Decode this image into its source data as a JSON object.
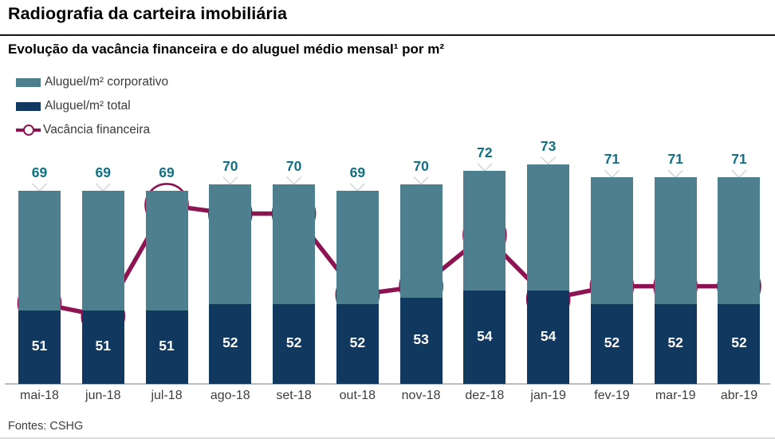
{
  "page": {
    "title": "Radiografia da carteira imobiliária",
    "subtitle": "Evolução da vacância financeira e do aluguel médio mensal¹ por m²",
    "footer": "Fontes: CSHG"
  },
  "legend": [
    {
      "label": "Aluguel/m² corporativo"
    },
    {
      "label": "Aluguel/m² total"
    },
    {
      "label": "Vacância financeira"
    }
  ],
  "colors": {
    "bar_corporativo": "#4e7f8e",
    "bar_total": "#11395f",
    "vacancy_line": "#8d1452",
    "vacancy_text": "#851247",
    "bar_top_label": "#0f7183",
    "bar_in_label": "#ffffff",
    "x_marker": "#ccd6da",
    "axis_line": "#bcbcbc",
    "axis_text": "#3d3d3d"
  },
  "chart_data": {
    "type": "bar",
    "subtype": "overlapped bars with secondary-axis line",
    "title": "Evolução da vacância financeira e do aluguel médio mensal por m²",
    "categories": [
      "mai-18",
      "jun-18",
      "jul-18",
      "ago-18",
      "set-18",
      "out-18",
      "nov-18",
      "dez-18",
      "jan-19",
      "fev-19",
      "mar-19",
      "abr-19"
    ],
    "series": [
      {
        "name": "Aluguel/m² corporativo",
        "type": "bar",
        "values": [
          69,
          69,
          69,
          70,
          70,
          69,
          70,
          72,
          73,
          71,
          71,
          71
        ]
      },
      {
        "name": "Aluguel/m² total",
        "type": "bar",
        "values": [
          51,
          51,
          51,
          52,
          52,
          52,
          53,
          54,
          54,
          52,
          52,
          52
        ]
      },
      {
        "name": "Vacância financeira",
        "type": "line",
        "unit": "%",
        "values": [
          17.4,
          17.1,
          19.7,
          19.5,
          19.5,
          17.6,
          17.8,
          19.0,
          17.5,
          17.8,
          17.8,
          17.8
        ]
      }
    ],
    "xlabel": "",
    "ylabel": "",
    "bar_axis_implied_min": 40,
    "secondary_axis_range_estimate": [
      16,
      22
    ],
    "grid": false,
    "legend_position": "top-left",
    "data_labels": true
  }
}
